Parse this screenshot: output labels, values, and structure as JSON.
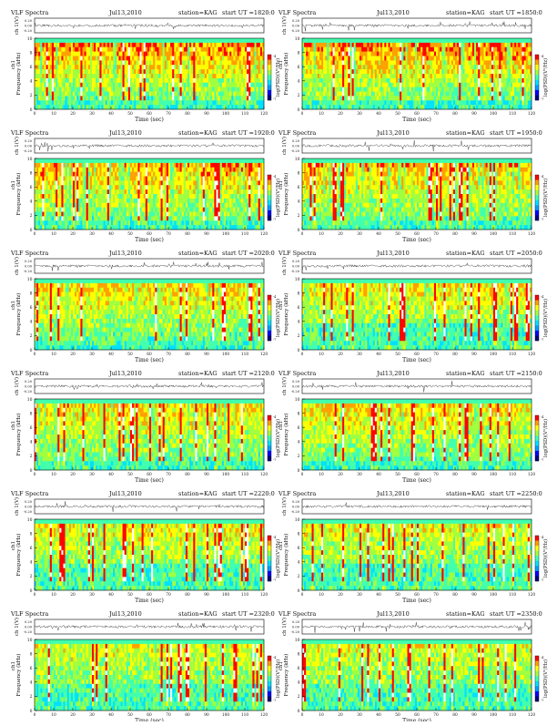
{
  "chart_data": [
    {
      "type": "heatmap",
      "title": "VLF Spectra",
      "date": "Jul13,2010",
      "station": "station=KAG",
      "start": "start UT =1820:0",
      "waveform": {
        "ylabel": "ch 1(V)",
        "ticks": [
          "0.20",
          "0.00",
          "-0.20"
        ],
        "ylim": [
          -0.2,
          0.2
        ]
      },
      "spectrogram": {
        "ylabel_channel": "ch1",
        "ylabel": "Frequency (kHz)",
        "xlabel": "Time (sec)",
        "x_ticks": [
          "0",
          "10",
          "20",
          "30",
          "40",
          "50",
          "60",
          "70",
          "80",
          "90",
          "100",
          "110",
          "120"
        ],
        "y_ticks": [
          "0",
          "2",
          "4",
          "6",
          "8",
          "10"
        ],
        "xlim": [
          0,
          120
        ],
        "ylim": [
          0,
          10
        ]
      },
      "colorbar": {
        "label": "log(PSD)(V²/Hz)",
        "ticks": [
          "-4",
          "-7"
        ]
      },
      "intensity": 0.82
    },
    {
      "type": "heatmap",
      "title": "VLF Spectra",
      "date": "Jul13,2010",
      "station": "station=KAG",
      "start": "start UT =1850:0",
      "waveform": {
        "ylabel": "ch 1(V)",
        "ticks": [
          "0.20",
          "0.00",
          "-0.20"
        ],
        "ylim": [
          -0.2,
          0.2
        ]
      },
      "spectrogram": {
        "ylabel_channel": "ch1",
        "ylabel": "Frequency (kHz)",
        "xlabel": "Time (sec)",
        "x_ticks": [
          "0",
          "10",
          "20",
          "30",
          "40",
          "50",
          "60",
          "70",
          "80",
          "90",
          "100",
          "110",
          "120"
        ],
        "y_ticks": [
          "0",
          "2",
          "4",
          "6",
          "8",
          "10"
        ],
        "xlim": [
          0,
          120
        ],
        "ylim": [
          0,
          10
        ]
      },
      "colorbar": {
        "label": "log(PSD)(V²/Hz)",
        "ticks": [
          "-4",
          "-7"
        ]
      },
      "intensity": 0.85
    },
    {
      "type": "heatmap",
      "title": "VLF Spectra",
      "date": "Jul13,2010",
      "station": "station=KAG",
      "start": "start UT =1920:0",
      "waveform": {
        "ylabel": "ch 1(V)",
        "ticks": [
          "0.20",
          "0.00",
          "-0.20"
        ],
        "ylim": [
          -0.2,
          0.2
        ]
      },
      "spectrogram": {
        "ylabel_channel": "ch1",
        "ylabel": "Frequency (kHz)",
        "xlabel": "Time (sec)",
        "x_ticks": [
          "0",
          "10",
          "20",
          "30",
          "40",
          "50",
          "60",
          "70",
          "80",
          "90",
          "100",
          "110",
          "120"
        ],
        "y_ticks": [
          "0",
          "2",
          "4",
          "6",
          "8",
          "10"
        ],
        "xlim": [
          0,
          120
        ],
        "ylim": [
          0,
          10
        ]
      },
      "colorbar": {
        "label": "log(PSD)(V²/Hz)",
        "ticks": [
          "-4",
          "-7"
        ]
      },
      "intensity": 0.75
    },
    {
      "type": "heatmap",
      "title": "VLF Spectra",
      "date": "Jul13,2010",
      "station": "station=KAG",
      "start": "start UT =1950:0",
      "waveform": {
        "ylabel": "ch 1(V)",
        "ticks": [
          "0.20",
          "0.00",
          "-0.20"
        ],
        "ylim": [
          -0.2,
          0.2
        ]
      },
      "spectrogram": {
        "ylabel_channel": "ch1",
        "ylabel": "Frequency (kHz)",
        "xlabel": "Time (sec)",
        "x_ticks": [
          "0",
          "10",
          "20",
          "30",
          "40",
          "50",
          "60",
          "70",
          "80",
          "90",
          "100",
          "110",
          "120"
        ],
        "y_ticks": [
          "0",
          "2",
          "4",
          "6",
          "8",
          "10"
        ],
        "xlim": [
          0,
          120
        ],
        "ylim": [
          0,
          10
        ]
      },
      "colorbar": {
        "label": "log(PSD)(V²/Hz)",
        "ticks": [
          "-4",
          "-7"
        ]
      },
      "intensity": 0.72
    },
    {
      "type": "heatmap",
      "title": "VLF Spectra",
      "date": "Jul13,2010",
      "station": "station=KAG",
      "start": "start UT =2020:0",
      "waveform": {
        "ylabel": "ch 1(V)",
        "ticks": [
          "0.20",
          "0.00",
          "-0.20"
        ],
        "ylim": [
          -0.2,
          0.2
        ]
      },
      "spectrogram": {
        "ylabel_channel": "ch1",
        "ylabel": "Frequency (kHz)",
        "xlabel": "Time (sec)",
        "x_ticks": [
          "0",
          "10",
          "20",
          "30",
          "40",
          "50",
          "60",
          "70",
          "80",
          "90",
          "100",
          "110",
          "120"
        ],
        "y_ticks": [
          "0",
          "2",
          "4",
          "6",
          "8",
          "10"
        ],
        "xlim": [
          0,
          120
        ],
        "ylim": [
          0,
          10
        ]
      },
      "colorbar": {
        "label": "log(PSD)(V²/Hz)",
        "ticks": [
          "-4",
          "-7"
        ]
      },
      "intensity": 0.6
    },
    {
      "type": "heatmap",
      "title": "VLF Spectra",
      "date": "Jul13,2010",
      "station": "station=KAG",
      "start": "start UT =2050:0",
      "waveform": {
        "ylabel": "ch 1(V)",
        "ticks": [
          "0.20",
          "0.00",
          "-0.20"
        ],
        "ylim": [
          -0.2,
          0.2
        ]
      },
      "spectrogram": {
        "ylabel_channel": "ch1",
        "ylabel": "Frequency (kHz)",
        "xlabel": "Time (sec)",
        "x_ticks": [
          "0",
          "10",
          "20",
          "30",
          "40",
          "50",
          "60",
          "70",
          "80",
          "90",
          "100",
          "110",
          "120"
        ],
        "y_ticks": [
          "0",
          "2",
          "4",
          "6",
          "8",
          "10"
        ],
        "xlim": [
          0,
          120
        ],
        "ylim": [
          0,
          10
        ]
      },
      "colorbar": {
        "label": "log(PSD)(V²/Hz)",
        "ticks": [
          "-4",
          "-7"
        ]
      },
      "intensity": 0.58
    },
    {
      "type": "heatmap",
      "title": "VLF Spectra",
      "date": "Jul13,2010",
      "station": "station=KAG",
      "start": "start UT =2120:0",
      "waveform": {
        "ylabel": "ch 1(V)",
        "ticks": [
          "0.20",
          "0.00",
          "-0.20"
        ],
        "ylim": [
          -0.2,
          0.2
        ]
      },
      "spectrogram": {
        "ylabel_channel": "ch1",
        "ylabel": "Frequency (kHz)",
        "xlabel": "Time (sec)",
        "x_ticks": [
          "0",
          "10",
          "20",
          "30",
          "40",
          "50",
          "60",
          "70",
          "80",
          "90",
          "100",
          "110",
          "120"
        ],
        "y_ticks": [
          "0",
          "2",
          "4",
          "6",
          "8",
          "10"
        ],
        "xlim": [
          0,
          120
        ],
        "ylim": [
          0,
          10
        ]
      },
      "colorbar": {
        "label": "log(PSD)(V²/Hz)",
        "ticks": [
          "-4",
          "-7"
        ]
      },
      "intensity": 0.62
    },
    {
      "type": "heatmap",
      "title": "VLF Spectra",
      "date": "Jul13,2010",
      "station": "station=KAG",
      "start": "start UT =2150:0",
      "waveform": {
        "ylabel": "ch 1(V)",
        "ticks": [
          "0.20",
          "0.00",
          "-0.20"
        ],
        "ylim": [
          -0.2,
          0.2
        ]
      },
      "spectrogram": {
        "ylabel_channel": "ch1",
        "ylabel": "Frequency (kHz)",
        "xlabel": "Time (sec)",
        "x_ticks": [
          "0",
          "10",
          "20",
          "30",
          "40",
          "50",
          "60",
          "70",
          "80",
          "90",
          "100",
          "110",
          "120"
        ],
        "y_ticks": [
          "0",
          "2",
          "4",
          "6",
          "8",
          "10"
        ],
        "xlim": [
          0,
          120
        ],
        "ylim": [
          0,
          10
        ]
      },
      "colorbar": {
        "label": "log(PSD)(V²/Hz)",
        "ticks": [
          "-4",
          "-7"
        ]
      },
      "intensity": 0.6
    },
    {
      "type": "heatmap",
      "title": "VLF Spectra",
      "date": "Jul13,2010",
      "station": "station=KAG",
      "start": "start UT =2220:0",
      "waveform": {
        "ylabel": "ch 1(V)",
        "ticks": [
          "0.20",
          "0.00",
          "-0.20"
        ],
        "ylim": [
          -0.2,
          0.2
        ]
      },
      "spectrogram": {
        "ylabel_channel": "ch1",
        "ylabel": "Frequency (kHz)",
        "xlabel": "Time (sec)",
        "x_ticks": [
          "0",
          "10",
          "20",
          "30",
          "40",
          "50",
          "60",
          "70",
          "80",
          "90",
          "100",
          "110",
          "120"
        ],
        "y_ticks": [
          "0",
          "2",
          "4",
          "6",
          "8",
          "10"
        ],
        "xlim": [
          0,
          120
        ],
        "ylim": [
          0,
          10
        ]
      },
      "colorbar": {
        "label": "log(PSD)(V²/Hz)",
        "ticks": [
          "-4",
          "-7"
        ]
      },
      "intensity": 0.52
    },
    {
      "type": "heatmap",
      "title": "VLF Spectra",
      "date": "Jul13,2010",
      "station": "station=KAG",
      "start": "start UT =2250:0",
      "waveform": {
        "ylabel": "ch 1(V)",
        "ticks": [
          "0.20",
          "0.00",
          "-0.20"
        ],
        "ylim": [
          -0.2,
          0.2
        ]
      },
      "spectrogram": {
        "ylabel_channel": "ch1",
        "ylabel": "Frequency (kHz)",
        "xlabel": "Time (sec)",
        "x_ticks": [
          "0",
          "10",
          "20",
          "30",
          "40",
          "50",
          "60",
          "70",
          "80",
          "90",
          "100",
          "110",
          "120"
        ],
        "y_ticks": [
          "0",
          "2",
          "4",
          "6",
          "8",
          "10"
        ],
        "xlim": [
          0,
          120
        ],
        "ylim": [
          0,
          10
        ]
      },
      "colorbar": {
        "label": "log(PSD)(V²/Hz)",
        "ticks": [
          "-4",
          "-7"
        ]
      },
      "intensity": 0.48
    },
    {
      "type": "heatmap",
      "title": "VLF Spectra",
      "date": "Jul13,2010",
      "station": "station=KAG",
      "start": "start UT =2320:0",
      "waveform": {
        "ylabel": "ch 1(V)",
        "ticks": [
          "0.20",
          "0.00",
          "-0.20"
        ],
        "ylim": [
          -0.2,
          0.2
        ]
      },
      "spectrogram": {
        "ylabel_channel": "ch1",
        "ylabel": "Frequency (kHz)",
        "xlabel": "Time (sec)",
        "x_ticks": [
          "0",
          "10",
          "20",
          "30",
          "40",
          "50",
          "60",
          "70",
          "80",
          "90",
          "100",
          "110",
          "120"
        ],
        "y_ticks": [
          "0",
          "2",
          "4",
          "6",
          "8",
          "10"
        ],
        "xlim": [
          0,
          120
        ],
        "ylim": [
          0,
          10
        ]
      },
      "colorbar": {
        "label": "log(PSD)(V²/Hz)",
        "ticks": [
          "-4",
          "-7"
        ]
      },
      "intensity": 0.45
    },
    {
      "type": "heatmap",
      "title": "VLF Spectra",
      "date": "Jul13,2010",
      "station": "station=KAG",
      "start": "start UT =2350:0",
      "waveform": {
        "ylabel": "ch 1(V)",
        "ticks": [
          "0.20",
          "0.00",
          "-0.20"
        ],
        "ylim": [
          -0.2,
          0.2
        ]
      },
      "spectrogram": {
        "ylabel_channel": "ch1",
        "ylabel": "Frequency (kHz)",
        "xlabel": "Time (sec)",
        "x_ticks": [
          "0",
          "10",
          "20",
          "30",
          "40",
          "50",
          "60",
          "70",
          "80",
          "90",
          "100",
          "110",
          "120"
        ],
        "y_ticks": [
          "0",
          "2",
          "4",
          "6",
          "8",
          "10"
        ],
        "xlim": [
          0,
          120
        ],
        "ylim": [
          0,
          10
        ]
      },
      "colorbar": {
        "label": "log(PSD)(V²/Hz)",
        "ticks": [
          "-4",
          "-7"
        ]
      },
      "intensity": 0.42
    }
  ],
  "colors": {
    "colormap": [
      "#000080",
      "#0000ff",
      "#00a0ff",
      "#00e0ff",
      "#40ffb0",
      "#a0ff40",
      "#ffff00",
      "#ffa000",
      "#ff0000",
      "#ffffff"
    ],
    "band_top": "#1ee0c8",
    "trace": "#222222"
  }
}
